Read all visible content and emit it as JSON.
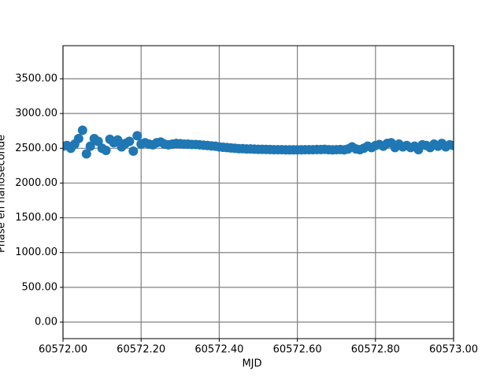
{
  "chart_data": {
    "type": "scatter",
    "xlabel": "MJD",
    "ylabel": "Phase en nanoseconde",
    "color": "#1f77b4",
    "grid": true,
    "xlim": [
      60572.0,
      60573.0
    ],
    "xticks": [
      {
        "value": 60572.0,
        "label": "60572.00"
      },
      {
        "value": 60572.2,
        "label": "60572.20"
      },
      {
        "value": 60572.4,
        "label": "60572.40"
      },
      {
        "value": 60572.6,
        "label": "60572.60"
      },
      {
        "value": 60572.8,
        "label": "60572.80"
      },
      {
        "value": 60573.0,
        "label": "60573.00"
      }
    ],
    "ylim": [
      -238,
      3976
    ],
    "yticks": [
      {
        "value": 0,
        "label": "0.00"
      },
      {
        "value": 500,
        "label": "500.00"
      },
      {
        "value": 1000,
        "label": "1000.00"
      },
      {
        "value": 1500,
        "label": "1500.00"
      },
      {
        "value": 2000,
        "label": "2000.00"
      },
      {
        "value": 2500,
        "label": "2500.00"
      },
      {
        "value": 3000,
        "label": "3000.00"
      },
      {
        "value": 3500,
        "label": "3500.00"
      }
    ],
    "x": [
      60572.0,
      60572.01,
      60572.02,
      60572.03,
      60572.04,
      60572.05,
      60572.06,
      60572.07,
      60572.08,
      60572.09,
      60572.1,
      60572.11,
      60572.12,
      60572.13,
      60572.14,
      60572.15,
      60572.16,
      60572.17,
      60572.18,
      60572.19,
      60572.2,
      60572.21,
      60572.22,
      60572.23,
      60572.24,
      60572.25,
      60572.26,
      60572.27,
      60572.28,
      60572.29,
      60572.3,
      60572.31,
      60572.32,
      60572.33,
      60572.34,
      60572.35,
      60572.36,
      60572.37,
      60572.38,
      60572.39,
      60572.4,
      60572.41,
      60572.42,
      60572.43,
      60572.44,
      60572.45,
      60572.46,
      60572.47,
      60572.48,
      60572.49,
      60572.5,
      60572.51,
      60572.52,
      60572.53,
      60572.54,
      60572.55,
      60572.56,
      60572.57,
      60572.58,
      60572.59,
      60572.6,
      60572.61,
      60572.62,
      60572.63,
      60572.64,
      60572.65,
      60572.66,
      60572.67,
      60572.68,
      60572.69,
      60572.7,
      60572.71,
      60572.72,
      60572.73,
      60572.74,
      60572.75,
      60572.76,
      60572.77,
      60572.78,
      60572.79,
      60572.8,
      60572.81,
      60572.82,
      60572.83,
      60572.84,
      60572.85,
      60572.86,
      60572.87,
      60572.88,
      60572.89,
      60572.9,
      60572.91,
      60572.92,
      60572.93,
      60572.94,
      60572.95,
      60572.96,
      60572.97,
      60572.98,
      60572.99,
      60573.0
    ],
    "values": [
      2530,
      2540,
      2500,
      2560,
      2640,
      2760,
      2420,
      2530,
      2640,
      2600,
      2500,
      2470,
      2630,
      2580,
      2620,
      2520,
      2570,
      2600,
      2460,
      2680,
      2560,
      2580,
      2560,
      2550,
      2580,
      2590,
      2560,
      2550,
      2560,
      2570,
      2565,
      2560,
      2560,
      2555,
      2555,
      2550,
      2545,
      2540,
      2535,
      2530,
      2520,
      2515,
      2510,
      2505,
      2500,
      2495,
      2495,
      2490,
      2490,
      2488,
      2485,
      2485,
      2483,
      2482,
      2480,
      2480,
      2480,
      2478,
      2478,
      2478,
      2478,
      2478,
      2480,
      2480,
      2480,
      2482,
      2482,
      2485,
      2480,
      2478,
      2480,
      2482,
      2478,
      2490,
      2520,
      2490,
      2480,
      2500,
      2530,
      2510,
      2540,
      2555,
      2530,
      2570,
      2580,
      2510,
      2560,
      2520,
      2540,
      2510,
      2530,
      2480,
      2550,
      2540,
      2510,
      2560,
      2530,
      2570,
      2520,
      2550,
      2540
    ]
  }
}
